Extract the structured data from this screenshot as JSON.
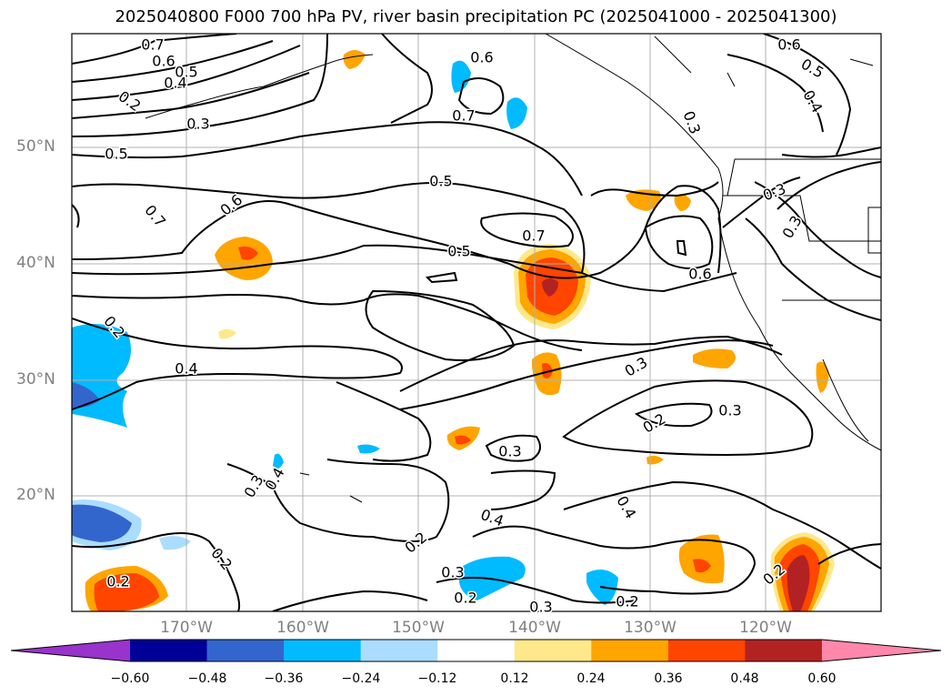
{
  "title": "2025040800 F000 700 hPa PV, river basin precipitation PC (2025041000 - 2025041300)",
  "map": {
    "lat_labels": [
      "50°N",
      "40°N",
      "30°N",
      "20°N"
    ],
    "lon_labels": [
      "170°W",
      "160°W",
      "150°W",
      "140°W",
      "130°W",
      "120°W"
    ],
    "contour_labels": [
      "0.7",
      "0.6",
      "0.5",
      "0.4",
      "0.2",
      "0.3",
      "0.5",
      "0.6",
      "0.7",
      "0.6",
      "0.5",
      "0.7",
      "0.5",
      "0.7",
      "0.6",
      "0.3",
      "0.3",
      "0.2",
      "0.4",
      "0.3",
      "0.2",
      "0.3",
      "0.3",
      "0.4",
      "0.3",
      "0.4",
      "0.2",
      "0.2",
      "0.3",
      "0.2",
      "0.4",
      "0.2",
      "0.2",
      "0.3",
      "0.2",
      "0.6",
      "0.5",
      "0.4",
      "0.3"
    ]
  },
  "colorbar": {
    "ticks": [
      "−0.60",
      "−0.48",
      "−0.36",
      "−0.24",
      "−0.12",
      "0.12",
      "0.24",
      "0.36",
      "0.48",
      "0.60"
    ],
    "colors": [
      "#9933cc",
      "#000099",
      "#3366cc",
      "#00bbff",
      "#aaddff",
      "#ffffff",
      "#ffe88a",
      "#ffa500",
      "#ff4500",
      "#b22222",
      "#ff88aa"
    ]
  }
}
